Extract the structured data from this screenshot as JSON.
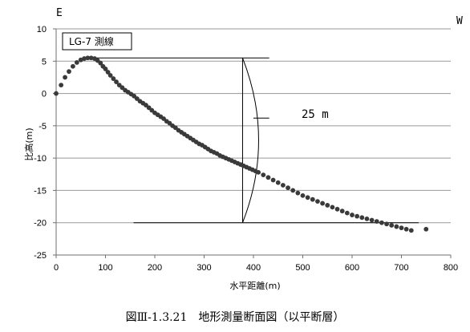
{
  "chart_data": {
    "type": "scatter",
    "title": "",
    "xlabel": "水平距離(m)",
    "ylabel": "比高(m)",
    "xlim": [
      0,
      800
    ],
    "ylim": [
      -25,
      10
    ],
    "x_ticks": [
      "0",
      "100",
      "200",
      "300",
      "400",
      "500",
      "600",
      "700",
      "800"
    ],
    "y_ticks": [
      "10",
      "5",
      "0",
      "-5",
      "-10",
      "-15",
      "-20",
      "-25"
    ],
    "grid": "horizontal",
    "direction_left": "E",
    "direction_right": "W",
    "legend": "LG-7 測線",
    "annotation": "25 m",
    "caption": "図Ⅲ-1.3.21　地形測量断面図（以平断層）",
    "series": [
      {
        "marker_color": "#3a3a3a",
        "x": [
          0,
          10,
          18,
          26,
          34,
          42,
          50,
          57,
          64,
          71,
          78,
          84,
          90,
          95,
          100,
          105,
          110,
          116,
          122,
          128,
          134,
          140,
          146,
          152,
          158,
          164,
          170,
          176,
          182,
          188,
          194,
          200,
          206,
          212,
          218,
          224,
          230,
          236,
          242,
          248,
          254,
          260,
          266,
          272,
          278,
          284,
          290,
          296,
          302,
          308,
          314,
          320,
          326,
          332,
          338,
          344,
          350,
          356,
          362,
          368,
          374,
          380,
          386,
          392,
          398,
          404,
          410,
          420,
          430,
          440,
          450,
          460,
          470,
          480,
          490,
          500,
          510,
          520,
          530,
          540,
          550,
          560,
          570,
          580,
          590,
          600,
          610,
          620,
          630,
          640,
          650,
          660,
          670,
          680,
          690,
          700,
          710,
          720,
          750
        ],
        "y": [
          0,
          1.3,
          2.5,
          3.4,
          4.2,
          4.8,
          5.2,
          5.4,
          5.5,
          5.5,
          5.4,
          5.1,
          4.7,
          4.2,
          3.8,
          3.3,
          2.8,
          2.3,
          1.8,
          1.3,
          0.9,
          0.5,
          0.2,
          -0.1,
          -0.4,
          -0.8,
          -1.2,
          -1.5,
          -1.8,
          -2.2,
          -2.6,
          -3.0,
          -3.3,
          -3.6,
          -3.9,
          -4.3,
          -4.6,
          -5.0,
          -5.3,
          -5.7,
          -6.0,
          -6.3,
          -6.6,
          -6.9,
          -7.2,
          -7.5,
          -7.8,
          -8.0,
          -8.3,
          -8.6,
          -8.9,
          -9.1,
          -9.3,
          -9.6,
          -9.8,
          -10.0,
          -10.2,
          -10.4,
          -10.6,
          -10.8,
          -11.0,
          -11.2,
          -11.4,
          -11.6,
          -11.8,
          -12.0,
          -12.2,
          -12.6,
          -13.0,
          -13.4,
          -13.8,
          -14.2,
          -14.6,
          -15.0,
          -15.4,
          -15.8,
          -16.1,
          -16.4,
          -16.7,
          -17.0,
          -17.3,
          -17.6,
          -17.9,
          -18.2,
          -18.5,
          -18.8,
          -19.0,
          -19.2,
          -19.4,
          -19.6,
          -19.8,
          -20.0,
          -20.2,
          -20.4,
          -20.6,
          -20.8,
          -21.0,
          -21.2,
          -21.0
        ]
      }
    ]
  }
}
